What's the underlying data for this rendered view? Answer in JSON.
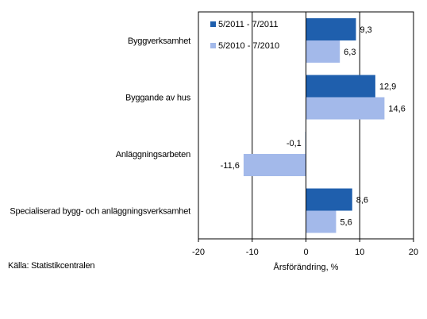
{
  "chart_data": {
    "type": "bar",
    "orientation": "horizontal",
    "categories": [
      "Byggverksamhet",
      "Byggande av hus",
      "Anläggningsarbeten",
      "Specialiserad bygg- och anläggningsverksamhet"
    ],
    "series": [
      {
        "name": "5/2011 - 7/2011",
        "color": "#1f5fad",
        "values": [
          9.3,
          12.9,
          -0.1,
          8.6
        ],
        "labels": [
          "9,3",
          "12,9",
          "-0,1",
          "8,6"
        ]
      },
      {
        "name": "5/2010 - 7/2010",
        "color": "#a3b9ea",
        "values": [
          6.3,
          14.6,
          -11.6,
          5.6
        ],
        "labels": [
          "6,3",
          "14,6",
          "-11,6",
          "5,6"
        ]
      }
    ],
    "xlim": [
      -20,
      20
    ],
    "xticks": [
      -20,
      -10,
      0,
      10,
      20
    ],
    "xticklabels": [
      "-20",
      "-10",
      "0",
      "10",
      "20"
    ],
    "xlabel": "Årsförändring, %",
    "grid": "vertical",
    "legend_position": "top-left inside plot"
  },
  "source": "Källa: Statistikcentralen"
}
